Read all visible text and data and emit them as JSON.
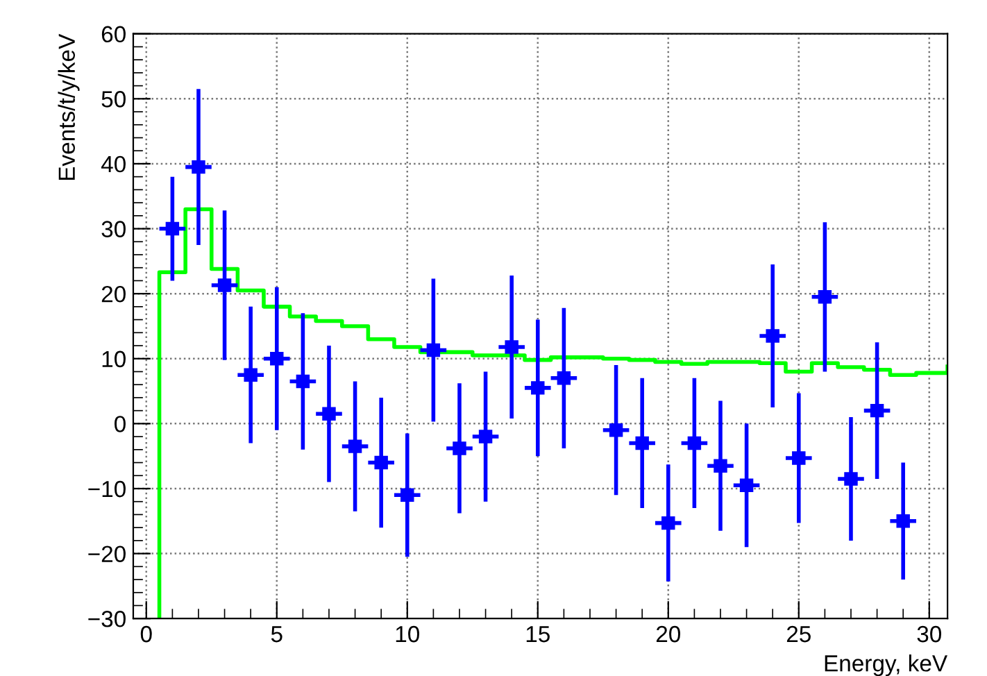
{
  "chart_data": {
    "type": "scatter",
    "xlabel": "Energy, keV",
    "ylabel": "Events/t/y/keV",
    "xlim": [
      -0.5,
      30.7
    ],
    "ylim": [
      -30,
      60
    ],
    "xticks": [
      0,
      5,
      10,
      15,
      20,
      25,
      30
    ],
    "yticks": [
      {
        "value": -30,
        "label": "−30"
      },
      {
        "value": -20,
        "label": "−20"
      },
      {
        "value": -10,
        "label": "−10"
      },
      0,
      10,
      20,
      30,
      40,
      50,
      60
    ],
    "grid": true,
    "marker": "square",
    "series": [
      {
        "type": "step",
        "color": "#00ff00",
        "line_style": "solid",
        "marker": "none",
        "x": [
          0.5,
          0.5,
          1.5,
          2.5,
          3.5,
          4.5,
          5.5,
          6.5,
          7.5,
          8.5,
          9.5,
          10.5,
          11.5,
          12.5,
          13.5,
          14.5,
          15.5,
          16.5,
          17.5,
          18.5,
          19.5,
          20.5,
          21.5,
          22.5,
          23.5,
          24.5,
          25.5,
          26.5,
          27.5,
          28.5,
          29.5,
          30.7
        ],
        "values": [
          -30,
          23.3,
          33,
          23.8,
          20.5,
          18,
          16.5,
          15.8,
          15,
          13,
          11.8,
          11,
          11,
          10.5,
          10.5,
          9.8,
          10.2,
          10.2,
          10,
          9.8,
          9.5,
          9.2,
          9.5,
          9.5,
          9.3,
          8,
          9.3,
          8.7,
          8.3,
          7.5,
          7.8,
          8.8
        ]
      },
      {
        "color": "#0000ff",
        "x": [
          1,
          2,
          3,
          4,
          5,
          6,
          7,
          8,
          9,
          10,
          11,
          12,
          13,
          14,
          15,
          16,
          18,
          19,
          20,
          21,
          22,
          23,
          24,
          25,
          26,
          27,
          28,
          29
        ],
        "values": [
          30,
          39.5,
          21.3,
          7.5,
          10,
          6.5,
          1.5,
          -3.5,
          -6,
          -11,
          11.3,
          -3.8,
          -2,
          11.8,
          5.5,
          7,
          -1,
          -3,
          -15.3,
          -3,
          -6.5,
          -9.5,
          13.5,
          -5.3,
          19.5,
          -8.5,
          2,
          -15
        ],
        "errors": [
          8,
          12,
          11.5,
          10.5,
          11,
          10.5,
          10.5,
          10,
          10,
          9.5,
          11,
          10,
          10,
          11,
          10.5,
          10.8,
          10,
          10,
          9,
          10,
          10,
          9.5,
          11,
          10,
          11.5,
          9.5,
          10.5,
          9
        ],
        "xerrors": [
          0.5,
          0.5,
          0.5,
          0.5,
          0.5,
          0.5,
          0.5,
          0.5,
          0.5,
          0.5,
          0.5,
          0.5,
          0.5,
          0.5,
          0.5,
          0.5,
          0.5,
          0.5,
          0.5,
          0.5,
          0.5,
          0.5,
          0.5,
          0.5,
          0.5,
          0.5,
          0.5,
          0.5
        ]
      }
    ]
  }
}
